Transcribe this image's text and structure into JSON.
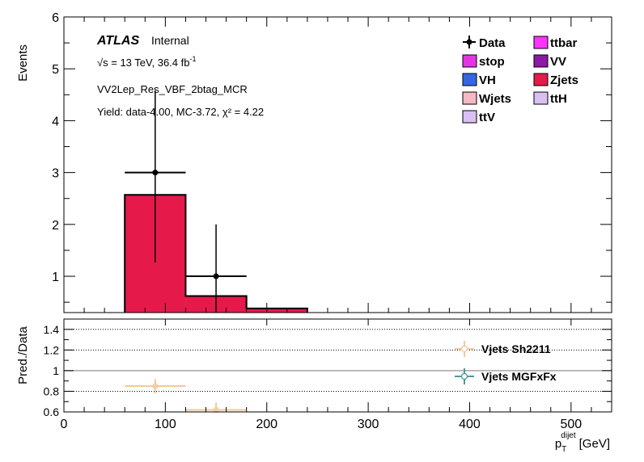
{
  "chart_data": [
    {
      "type": "bar",
      "ylabel": "Events",
      "ylim": [
        0.3,
        6
      ],
      "yticks": [
        "1",
        "2",
        "3",
        "4",
        "5",
        "6"
      ],
      "atlas_label": "ATLAS",
      "atlas_status": "Internal",
      "energy_text": "√s = 13 TeV, 36.4 fb",
      "energy_superscript": "-1",
      "region_label": "VV2Lep_Res_VBF_2btag_MCR",
      "yield_text": "Yield: data-4.00, MC-3.72, χ² = 4.22",
      "legend": [
        {
          "label": "Data",
          "type": "marker",
          "color": "#000000"
        },
        {
          "label": "ttbar",
          "type": "box",
          "color": "#ff33ff"
        },
        {
          "label": "stop",
          "type": "box",
          "color": "#e633e6"
        },
        {
          "label": "VV",
          "type": "box",
          "color": "#8c1aa6"
        },
        {
          "label": "VH",
          "type": "box",
          "color": "#3366e6"
        },
        {
          "label": "Zjets",
          "type": "box",
          "color": "#e6194b"
        },
        {
          "label": "Wjets",
          "type": "box",
          "color": "#f5b8c4"
        },
        {
          "label": "ttH",
          "type": "box",
          "color": "#d9bff2"
        },
        {
          "label": "ttV",
          "type": "box",
          "color": "#d9bff2"
        }
      ],
      "bins": [
        {
          "low": 60,
          "high": 120,
          "zjets": 2.57
        },
        {
          "low": 120,
          "high": 180,
          "zjets": 0.62
        },
        {
          "low": 180,
          "high": 240,
          "zjets": 0.38
        }
      ],
      "data_points": [
        {
          "x": 90,
          "xerr": 30,
          "y": 3,
          "ylow": 1.27,
          "yhigh": 4.58
        },
        {
          "x": 150,
          "xerr": 30,
          "y": 1,
          "ylow": 0.0,
          "yhigh": 2.0
        }
      ]
    },
    {
      "type": "scatter",
      "xlabel": "p",
      "xlabel_sub": "T",
      "xlabel_sup": "dijet",
      "xlabel_unit": "[GeV]",
      "ylabel": "Pred./Data",
      "xlim": [
        0,
        540
      ],
      "ylim": [
        0.6,
        1.5
      ],
      "xticks": [
        "0",
        "100",
        "200",
        "300",
        "400",
        "500"
      ],
      "yticks": [
        "0.6",
        "0.8",
        "1",
        "1.2",
        "1.4"
      ],
      "reference_lines": [
        0.8,
        1.0,
        1.2,
        1.4
      ],
      "series": [
        {
          "name": "Vjets Sh2211",
          "color": "#f5c89a",
          "points": [
            {
              "x": 90,
              "xerr": 30,
              "y": 0.85,
              "yerr": 0.07
            },
            {
              "x": 150,
              "xerr": 30,
              "y": 0.62,
              "yerr": 0.07
            }
          ]
        },
        {
          "name": "Vjets MGFxFx",
          "color": "#4d9999",
          "points": []
        }
      ]
    }
  ]
}
